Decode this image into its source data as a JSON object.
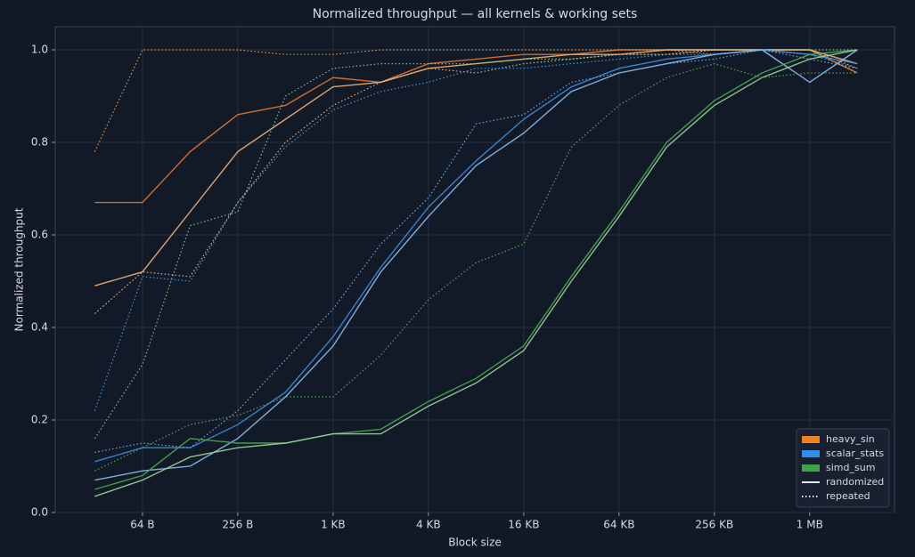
{
  "chart_data": {
    "type": "line",
    "title": "Normalized throughput — all kernels & working sets",
    "xlabel": "Block size",
    "ylabel": "Normalized throughput",
    "xscale": "log",
    "xlim": [
      18,
      3600000
    ],
    "xticks": [
      {
        "value": 64,
        "label": "64 B"
      },
      {
        "value": 256,
        "label": "256 B"
      },
      {
        "value": 1024,
        "label": "1 KB"
      },
      {
        "value": 4096,
        "label": "4 KB"
      },
      {
        "value": 16384,
        "label": "16 KB"
      },
      {
        "value": 65536,
        "label": "64 KB"
      },
      {
        "value": 262144,
        "label": "256 KB"
      },
      {
        "value": 1048576,
        "label": "1 MB"
      }
    ],
    "ylim": [
      0,
      1.05
    ],
    "yticks": [
      {
        "value": 0,
        "label": "0.0"
      },
      {
        "value": 0.2,
        "label": "0.2"
      },
      {
        "value": 0.4,
        "label": "0.4"
      },
      {
        "value": 0.6,
        "label": "0.6"
      },
      {
        "value": 0.8,
        "label": "0.8"
      },
      {
        "value": 1,
        "label": "1.0"
      }
    ],
    "grid": true,
    "legend": "lower right",
    "x": [
      32,
      64,
      128,
      256,
      512,
      1024,
      2048,
      4096,
      8192,
      16384,
      32768,
      65536,
      131072,
      262144,
      524288,
      1048576,
      2097152
    ],
    "styles": [
      {
        "name": "randomized",
        "dash": "solid"
      },
      {
        "name": "repeated",
        "dash": "dotted"
      }
    ],
    "series": [
      {
        "name": "heavy_sin",
        "color": "#f07f1f",
        "lines": [
          {
            "color": "#e8752a",
            "style": 0,
            "values": [
              0.67,
              0.67,
              0.78,
              0.86,
              0.88,
              0.94,
              0.93,
              0.97,
              0.98,
              0.99,
              0.99,
              1.0,
              1.0,
              1.0,
              1.0,
              1.0,
              0.95
            ]
          },
          {
            "color": "#f2b27a",
            "style": 0,
            "values": [
              0.49,
              0.52,
              0.65,
              0.78,
              0.85,
              0.92,
              0.93,
              0.96,
              0.97,
              0.98,
              0.99,
              0.99,
              1.0,
              1.0,
              1.0,
              1.0,
              0.97
            ]
          },
          {
            "color": "#f5a54a",
            "style": 1,
            "values": [
              0.78,
              1.0,
              1.0,
              1.0,
              0.99,
              0.99,
              1.0,
              1.0,
              1.0,
              1.0,
              1.0,
              1.0,
              1.0,
              0.99,
              1.0,
              1.0,
              0.95
            ]
          },
          {
            "color": "#f4c08e",
            "style": 1,
            "values": [
              0.43,
              0.52,
              0.51,
              0.67,
              0.8,
              0.88,
              0.93,
              0.96,
              0.95,
              0.97,
              0.98,
              0.99,
              0.99,
              1.0,
              1.0,
              1.0,
              0.96
            ]
          }
        ]
      },
      {
        "name": "scalar_stats",
        "color": "#2f8fe8",
        "lines": [
          {
            "color": "#3a8fe0",
            "style": 0,
            "values": [
              0.11,
              0.14,
              0.14,
              0.19,
              0.26,
              0.38,
              0.53,
              0.66,
              0.76,
              0.85,
              0.92,
              0.96,
              0.98,
              0.99,
              1.0,
              0.99,
              0.97
            ]
          },
          {
            "color": "#8cc0f0",
            "style": 0,
            "values": [
              0.07,
              0.09,
              0.1,
              0.16,
              0.25,
              0.36,
              0.52,
              0.64,
              0.75,
              0.82,
              0.91,
              0.95,
              0.97,
              0.99,
              1.0,
              0.93,
              1.0
            ]
          },
          {
            "color": "#4aa0e8",
            "style": 1,
            "values": [
              0.22,
              0.51,
              0.5,
              0.67,
              0.79,
              0.87,
              0.91,
              0.93,
              0.96,
              0.96,
              0.97,
              0.98,
              0.99,
              0.99,
              1.0,
              0.99,
              0.96
            ]
          },
          {
            "color": "#7ab4ec",
            "style": 1,
            "values": [
              0.13,
              0.15,
              0.14,
              0.22,
              0.33,
              0.44,
              0.58,
              0.68,
              0.84,
              0.86,
              0.93,
              0.95,
              0.97,
              0.98,
              1.0,
              0.98,
              0.96
            ]
          }
        ]
      },
      {
        "name": "simd_sum",
        "color": "#3fa34d",
        "lines": [
          {
            "color": "#4caa50",
            "style": 0,
            "values": [
              0.05,
              0.08,
              0.16,
              0.15,
              0.15,
              0.17,
              0.18,
              0.24,
              0.29,
              0.36,
              0.51,
              0.65,
              0.8,
              0.89,
              0.95,
              0.99,
              1.0
            ]
          },
          {
            "color": "#9fd49a",
            "style": 0,
            "values": [
              0.035,
              0.07,
              0.12,
              0.14,
              0.15,
              0.17,
              0.17,
              0.23,
              0.28,
              0.35,
              0.5,
              0.64,
              0.79,
              0.88,
              0.94,
              0.98,
              1.0
            ]
          },
          {
            "color": "#8ccf88",
            "style": 1,
            "values": [
              0.16,
              0.32,
              0.62,
              0.65,
              0.9,
              0.96,
              0.97,
              0.97,
              0.97,
              0.98,
              0.98,
              0.99,
              0.99,
              1.0,
              1.0,
              1.0,
              1.0
            ]
          },
          {
            "color": "#5fb05f",
            "style": 1,
            "values": [
              0.09,
              0.14,
              0.19,
              0.21,
              0.25,
              0.25,
              0.34,
              0.46,
              0.54,
              0.58,
              0.79,
              0.88,
              0.94,
              0.97,
              0.94,
              0.95,
              0.95
            ]
          }
        ]
      }
    ]
  }
}
